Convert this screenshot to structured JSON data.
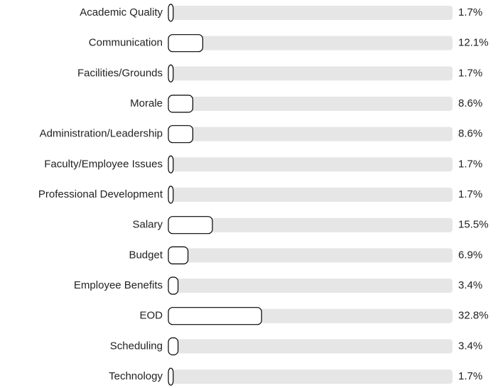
{
  "chart_data": {
    "type": "bar",
    "orientation": "horizontal",
    "categories": [
      "Academic Quality",
      "Communication",
      "Facilities/Grounds",
      "Morale",
      "Administration/Leadership",
      "Faculty/Employee Issues",
      "Professional Development",
      "Salary",
      "Budget",
      "Employee Benefits",
      "EOD",
      "Scheduling",
      "Technology"
    ],
    "values": [
      1.7,
      12.1,
      1.7,
      8.6,
      8.6,
      1.7,
      1.7,
      15.5,
      6.9,
      3.4,
      32.8,
      3.4,
      1.7
    ],
    "value_labels": [
      "1.7%",
      "12.1%",
      "1.7%",
      "8.6%",
      "8.6%",
      "1.7%",
      "1.7%",
      "15.5%",
      "6.9%",
      "3.4%",
      "32.8%",
      "3.4%",
      "1.7%"
    ],
    "xlim": [
      0,
      100
    ],
    "color": "#ffffff",
    "track_color": "#e6e6e6"
  }
}
